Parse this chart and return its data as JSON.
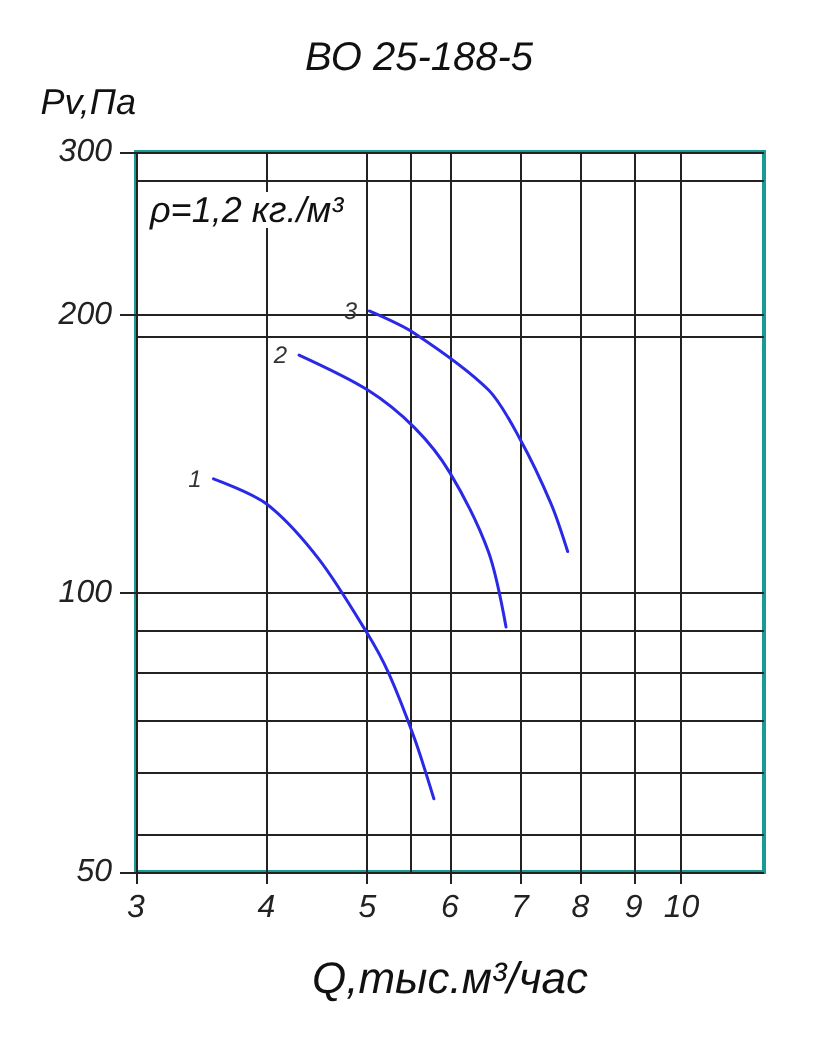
{
  "chart_data": {
    "type": "line",
    "title": "ВО 25-188-5",
    "xlabel": "Q,тыс.м³/час",
    "ylabel": "Pv,Па",
    "annotations": [
      "ρ=1,2 кг./м³"
    ],
    "log": "xy",
    "xlim": [
      3,
      12
    ],
    "ylim": [
      50,
      300
    ],
    "xticks": [
      3,
      4,
      5,
      6,
      7,
      8,
      9,
      10
    ],
    "yticks": [
      50,
      100,
      200,
      300
    ],
    "grid": true,
    "legend": false,
    "marker": "none",
    "line_style": "solid",
    "series": [
      {
        "name": "1",
        "color": "#2a2ae6",
        "x": [
          3.56,
          4,
          4.49,
          5,
          5.24,
          5.55,
          5.79
        ],
        "values": [
          133,
          125,
          109,
          90.5,
          82,
          69.6,
          60
        ]
      },
      {
        "name": "2",
        "color": "#2a2ae6",
        "x": [
          4.3,
          5,
          5.55,
          6,
          6.53,
          6.79
        ],
        "values": [
          181,
          166,
          151,
          135,
          111,
          92
        ]
      },
      {
        "name": "3",
        "color": "#2a2ae6",
        "x": [
          5.02,
          5.55,
          6.53,
          7,
          7.5,
          7.78
        ],
        "values": [
          202,
          191,
          166,
          147,
          125,
          111
        ]
      }
    ]
  }
}
